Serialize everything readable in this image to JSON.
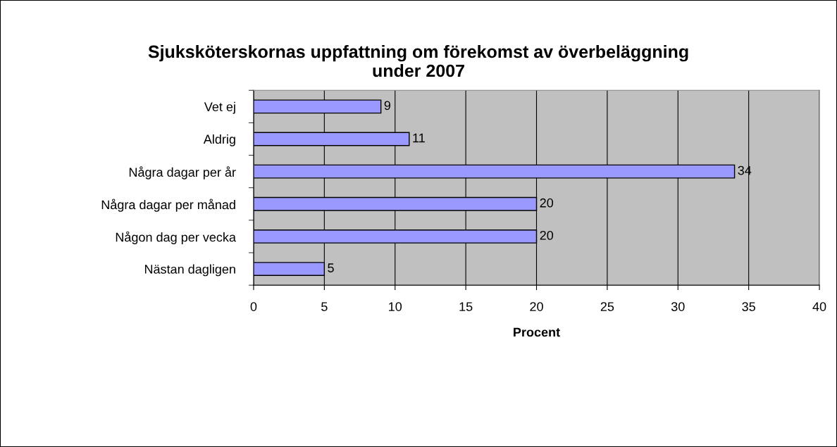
{
  "chart_data": {
    "type": "bar",
    "orientation": "horizontal",
    "title": "Sjuksköterskornas uppfattning om förekomst av överbeläggning\nunder 2007",
    "xlabel": "Procent",
    "categories": [
      "Vet ej",
      "Aldrig",
      "Några dagar per år",
      "Några dagar per månad",
      "Någon dag per vecka",
      "Nästan dagligen"
    ],
    "values": [
      9,
      11,
      34,
      20,
      20,
      5
    ],
    "color": "#9999ff",
    "xlim": [
      0,
      40
    ],
    "xticks": [
      0,
      5,
      10,
      15,
      20,
      25,
      30,
      35,
      40
    ],
    "grid": "x",
    "data_labels": true
  }
}
